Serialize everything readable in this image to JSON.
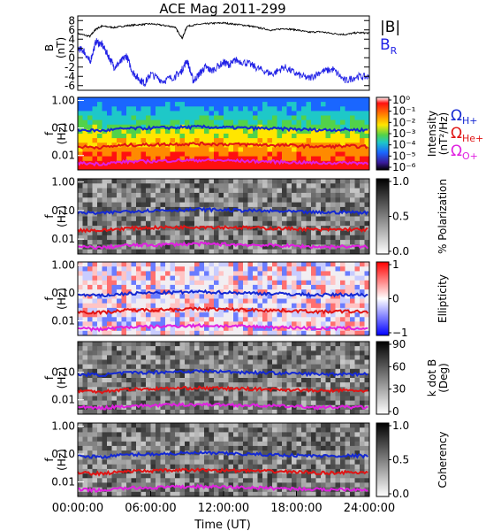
{
  "figure": {
    "title": "ACE Mag 2011-299",
    "x_axis": {
      "label": "Time (UT)",
      "ticks": [
        "00:00:00",
        "06:00:00",
        "12:00:00",
        "18:00:00",
        "24:00:00"
      ],
      "range_hours": [
        0,
        24
      ]
    }
  },
  "chart_data": [
    {
      "type": "line",
      "panel": "magnetic-field",
      "ylabel": "B (nT)",
      "ylabel_lines": [
        "B",
        "(nT)"
      ],
      "ylim": [
        -7,
        9
      ],
      "y_ticks": [
        "8",
        "6",
        "4",
        "2",
        "0",
        "-2",
        "-4",
        "-6"
      ],
      "x_unit": "hours UT",
      "legend_position": "right",
      "series": [
        {
          "name": "|B|",
          "color": "#000000",
          "points": [
            [
              0,
              5.2
            ],
            [
              1,
              4.6
            ],
            [
              1.5,
              6.2
            ],
            [
              2,
              6.8
            ],
            [
              3,
              6.5
            ],
            [
              4,
              6.9
            ],
            [
              5,
              7.1
            ],
            [
              6,
              7.3
            ],
            [
              7,
              7.0
            ],
            [
              8,
              6.6
            ],
            [
              8.6,
              4.2
            ],
            [
              9,
              6.8
            ],
            [
              10,
              7.2
            ],
            [
              11,
              7.4
            ],
            [
              12,
              7.5
            ],
            [
              13,
              7.2
            ],
            [
              14,
              6.9
            ],
            [
              15,
              6.4
            ],
            [
              16,
              5.9
            ],
            [
              17,
              6.3
            ],
            [
              18,
              6.0
            ],
            [
              19,
              5.5
            ],
            [
              20,
              5.6
            ],
            [
              21,
              5.2
            ],
            [
              22,
              5.0
            ],
            [
              23,
              5.4
            ],
            [
              24,
              5.3
            ]
          ]
        },
        {
          "name": "B_R",
          "legend_main": "B",
          "legend_sub": "R",
          "color": "#2222e6",
          "points": [
            [
              0,
              2.0
            ],
            [
              0.5,
              1.5
            ],
            [
              1,
              -1.0
            ],
            [
              1.5,
              3.5
            ],
            [
              2,
              2.8
            ],
            [
              2.5,
              0.5
            ],
            [
              3,
              -2.0
            ],
            [
              3.5,
              -1.0
            ],
            [
              4,
              0.5
            ],
            [
              4.5,
              -3.0
            ],
            [
              5,
              -4.5
            ],
            [
              5.5,
              -5.5
            ],
            [
              6,
              -3.5
            ],
            [
              7,
              -5.0
            ],
            [
              8,
              -4.0
            ],
            [
              8.5,
              -3.0
            ],
            [
              9,
              -0.5
            ],
            [
              9.5,
              -5.0
            ],
            [
              10,
              -3.5
            ],
            [
              10.5,
              -2.0
            ],
            [
              11,
              -2.8
            ],
            [
              12,
              -1.0
            ],
            [
              12.5,
              -1.5
            ],
            [
              13,
              -0.5
            ],
            [
              14,
              -1.2
            ],
            [
              15,
              -2.5
            ],
            [
              16,
              -3.5
            ],
            [
              17,
              -2.0
            ],
            [
              18,
              -3.5
            ],
            [
              19,
              -4.5
            ],
            [
              20,
              -3.0
            ],
            [
              21,
              -2.5
            ],
            [
              22,
              -5.0
            ],
            [
              23,
              -4.0
            ],
            [
              24,
              -4.2
            ]
          ]
        }
      ]
    },
    {
      "type": "heatmap",
      "panel": "intensity-spectrogram",
      "ylabel": "f (Hz)",
      "y_scale": "log",
      "ylim": [
        0.003,
        1.3
      ],
      "y_ticks": [
        "1.00",
        "0.10",
        "0.01"
      ],
      "colorbar": {
        "label": "Intensity (nT²/Hz)",
        "label_lines": [
          "Intensity",
          "(nT²/Hz)"
        ],
        "ticks": [
          "10⁰",
          "10⁻¹",
          "10⁻²",
          "10⁻³",
          "10⁻⁴",
          "10⁻⁵",
          "10⁻⁶"
        ],
        "colormap": [
          "#ffffff",
          "#ff1010",
          "#ff8a00",
          "#ffe600",
          "#52d24a",
          "#1ec8c8",
          "#1a66ff",
          "#3a1a9a",
          "#000000"
        ]
      },
      "overlays": [
        {
          "name": "ΩH+",
          "color": "#1428d2",
          "f_hz": [
            0.085,
            0.08,
            0.095,
            0.1,
            0.105,
            0.11,
            0.105,
            0.1,
            0.095,
            0.09,
            0.085,
            0.088,
            0.085
          ]
        },
        {
          "name": "ΩHe+",
          "color": "#e01414",
          "f_hz": [
            0.021,
            0.02,
            0.024,
            0.025,
            0.026,
            0.027,
            0.026,
            0.025,
            0.024,
            0.023,
            0.021,
            0.022,
            0.021
          ]
        },
        {
          "name": "ΩO+",
          "color": "#e020e0",
          "f_hz": [
            0.0053,
            0.005,
            0.006,
            0.0062,
            0.0066,
            0.0068,
            0.0066,
            0.0063,
            0.006,
            0.0057,
            0.0053,
            0.0055,
            0.0053
          ]
        }
      ]
    },
    {
      "type": "heatmap",
      "panel": "polarization",
      "ylabel": "f (Hz)",
      "y_scale": "log",
      "ylim": [
        0.003,
        1.3
      ],
      "y_ticks": [
        "1.00",
        "0.10",
        "0.01"
      ],
      "colorbar": {
        "label": "% Polarization",
        "label_lines": [
          "% Polarization"
        ],
        "ticks": [
          "1.0",
          "0.5",
          "0.0"
        ],
        "colormap": [
          "#000000",
          "#ffffff"
        ]
      }
    },
    {
      "type": "heatmap",
      "panel": "ellipticity",
      "ylabel": "f (Hz)",
      "y_scale": "log",
      "ylim": [
        0.003,
        1.3
      ],
      "y_ticks": [
        "1.00",
        "0.10",
        "0.01"
      ],
      "colorbar": {
        "label": "Ellipticity",
        "label_lines": [
          "Ellipticity"
        ],
        "ticks": [
          "1",
          "0",
          "−1"
        ],
        "colormap": [
          "#ff0000",
          "#ffffff",
          "#0000ff"
        ]
      }
    },
    {
      "type": "heatmap",
      "panel": "wave-normal-angle",
      "ylabel": "f (Hz)",
      "y_scale": "log",
      "ylim": [
        0.003,
        1.3
      ],
      "y_ticks": [
        "0.10",
        "0.01"
      ],
      "colorbar": {
        "label": "k dot B (Deg)",
        "label_lines": [
          "k dot B",
          "(Deg)"
        ],
        "ticks": [
          "90",
          "60",
          "30",
          "0"
        ],
        "colormap": [
          "#000000",
          "#ffffff"
        ]
      }
    },
    {
      "type": "heatmap",
      "panel": "coherency",
      "ylabel": "f (Hz)",
      "y_scale": "log",
      "ylim": [
        0.003,
        1.3
      ],
      "y_ticks": [
        "1.00",
        "0.10",
        "0.01"
      ],
      "colorbar": {
        "label": "Coherency",
        "label_lines": [
          "Coherency"
        ],
        "ticks": [
          "1.0",
          "0.5",
          "0.0"
        ],
        "colormap": [
          "#000000",
          "#ffffff"
        ]
      }
    }
  ],
  "cyclotron_legend": [
    {
      "main": "Ω",
      "sub": "H+",
      "color": "#1428d2"
    },
    {
      "main": "Ω",
      "sub": "He+",
      "color": "#e01414"
    },
    {
      "main": "Ω",
      "sub": "O+",
      "color": "#e020e0"
    }
  ]
}
